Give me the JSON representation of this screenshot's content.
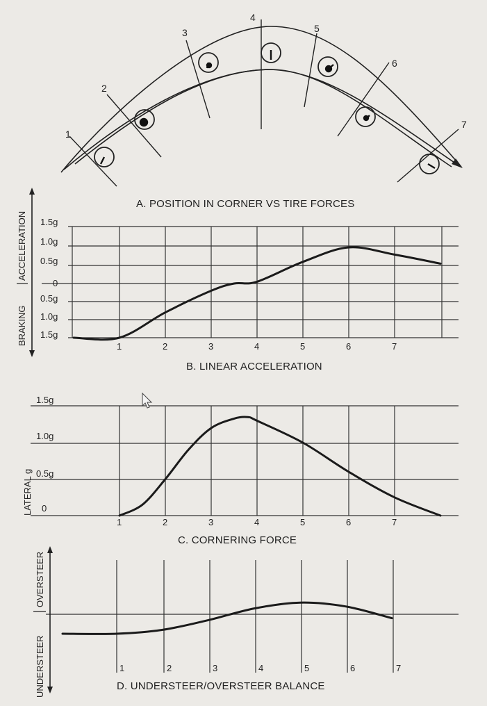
{
  "panel_a": {
    "caption": "A. POSITION IN CORNER VS TIRE FORCES",
    "positions": [
      "1",
      "2",
      "3",
      "4",
      "5",
      "6",
      "7"
    ]
  },
  "panel_b": {
    "caption": "B. LINEAR ACCELERATION",
    "axis_top_label": "ACCELERATION",
    "axis_bottom_label": "BRAKING",
    "y_ticks": [
      "1.5g",
      "1.0g",
      "0.5g",
      "0",
      "0.5g",
      "1.0g",
      "1.5g"
    ],
    "x_ticks": [
      "1",
      "2",
      "3",
      "4",
      "5",
      "6",
      "7"
    ]
  },
  "panel_c": {
    "caption": "C. CORNERING FORCE",
    "axis_label": "LATERAL g",
    "y_ticks": [
      "1.5g",
      "1.0g",
      "0.5g",
      "0"
    ],
    "x_ticks": [
      "1",
      "2",
      "3",
      "4",
      "5",
      "6",
      "7"
    ]
  },
  "panel_d": {
    "caption": "D. UNDERSTEER/OVERSTEER BALANCE",
    "axis_top_label": "OVERSTEER",
    "axis_bottom_label": "UNDERSTEER",
    "x_ticks": [
      "1",
      "2",
      "3",
      "4",
      "5",
      "6",
      "7"
    ]
  },
  "chart_data": [
    {
      "type": "line",
      "title": "B. LINEAR ACCELERATION",
      "ylabel": "BRAKING | ACCELERATION",
      "x": [
        0,
        1,
        2,
        3,
        3.5,
        4,
        5,
        6,
        7,
        8
      ],
      "y": [
        -1.5,
        -1.5,
        -0.8,
        -0.2,
        0.0,
        0.05,
        0.6,
        1.0,
        0.8,
        0.55
      ],
      "ylim": [
        -1.5,
        1.5
      ]
    },
    {
      "type": "line",
      "title": "C. CORNERING FORCE",
      "ylabel": "LATERAL g",
      "x": [
        1,
        1.5,
        2,
        2.5,
        3,
        3.5,
        3.8,
        4,
        5,
        6,
        7,
        8
      ],
      "y": [
        0,
        0.15,
        0.5,
        0.9,
        1.2,
        1.33,
        1.35,
        1.3,
        1.0,
        0.6,
        0.25,
        0
      ],
      "ylim": [
        0,
        1.5
      ]
    },
    {
      "type": "line",
      "title": "D. UNDERSTEER/OVERSTEER BALANCE",
      "ylabel": "UNDERSTEER | OVERSTEER",
      "x": [
        0,
        1,
        2,
        3,
        4,
        5,
        6,
        7
      ],
      "y": [
        -0.5,
        -0.5,
        -0.4,
        -0.15,
        0.15,
        0.3,
        0.2,
        -0.1
      ],
      "ylim": [
        -1,
        1
      ]
    }
  ]
}
